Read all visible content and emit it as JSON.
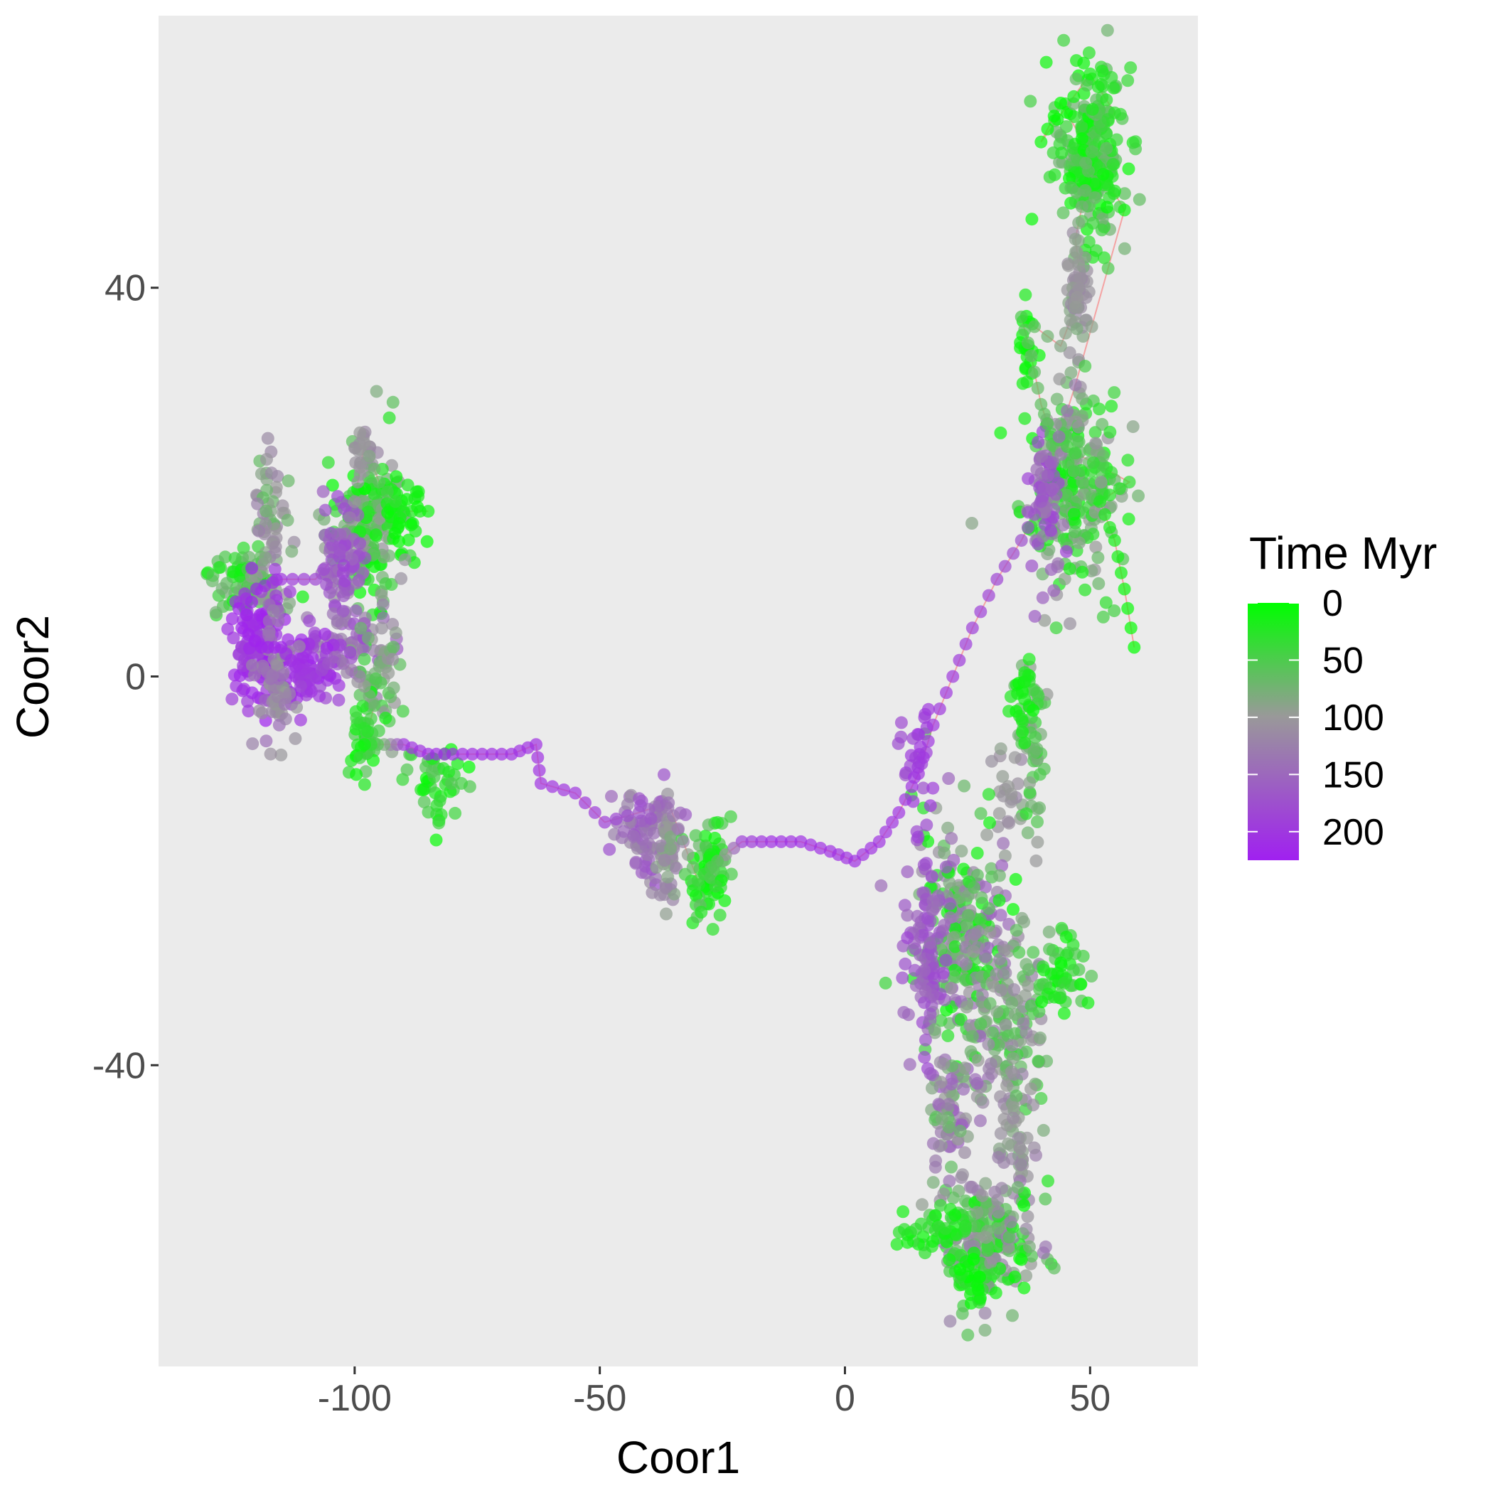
{
  "chart_data": {
    "type": "scatter",
    "title": "",
    "xlabel": "Coor1",
    "ylabel": "Coor2",
    "xlim": [
      -140,
      72
    ],
    "ylim": [
      -71,
      68
    ],
    "x_ticks": [
      -100,
      -50,
      0,
      50
    ],
    "x_tick_labels": [
      "-100",
      "-50",
      "0",
      "50"
    ],
    "y_ticks": [
      40,
      0,
      -40
    ],
    "y_tick_labels": [
      "40",
      "0",
      "-40"
    ],
    "grid": false,
    "panel_background": "#ebebeb",
    "connecting_line_color": "#f4a3a3",
    "color_scale": {
      "title": "Time Myr",
      "low_color": "#00ff00",
      "mid_color": "#999999",
      "high_color": "#a020f0",
      "range": [
        0,
        225
      ],
      "breaks": [
        0,
        50,
        100,
        150,
        200
      ],
      "break_labels": [
        "0",
        "50",
        "100",
        "150",
        "200"
      ]
    },
    "legend_position": "right",
    "point_alpha": 0.7,
    "trajectory": [
      {
        "x": 59,
        "y": 3,
        "t": 0
      },
      {
        "x": 57,
        "y": 9,
        "t": 8
      },
      {
        "x": 55,
        "y": 14,
        "t": 15
      },
      {
        "x": 52,
        "y": 18,
        "t": 22
      },
      {
        "x": 58,
        "y": 20,
        "t": 30
      },
      {
        "x": 47,
        "y": 23,
        "t": 40
      },
      {
        "x": 42,
        "y": 25,
        "t": 52
      },
      {
        "x": 40,
        "y": 28,
        "t": 62
      },
      {
        "x": 38,
        "y": 33,
        "t": 70
      },
      {
        "x": 36,
        "y": 37,
        "t": 50
      },
      {
        "x": 44,
        "y": 34,
        "t": 85
      },
      {
        "x": 47,
        "y": 38,
        "t": 95
      },
      {
        "x": 48,
        "y": 41,
        "t": 105
      },
      {
        "x": 47,
        "y": 45,
        "t": 90
      },
      {
        "x": 49,
        "y": 50,
        "t": 70
      },
      {
        "x": 51,
        "y": 56,
        "t": 50
      },
      {
        "x": 55,
        "y": 58,
        "t": 30
      },
      {
        "x": 50,
        "y": 62,
        "t": 15
      },
      {
        "x": 40,
        "y": 55,
        "t": 5
      },
      {
        "x": 44,
        "y": 59,
        "t": 0
      },
      {
        "x": 57,
        "y": 48,
        "t": 10
      },
      {
        "x": 47,
        "y": 30,
        "t": 130
      },
      {
        "x": 42,
        "y": 22,
        "t": 150
      },
      {
        "x": 40,
        "y": 18,
        "t": 165
      },
      {
        "x": 36,
        "y": 14,
        "t": 175
      },
      {
        "x": 31,
        "y": 10,
        "t": 185
      },
      {
        "x": 26,
        "y": 5,
        "t": 192
      },
      {
        "x": 22,
        "y": 0,
        "t": 198
      },
      {
        "x": 18,
        "y": -5,
        "t": 200
      },
      {
        "x": 15,
        "y": -10,
        "t": 202
      },
      {
        "x": 11,
        "y": -14,
        "t": 204
      },
      {
        "x": 7,
        "y": -17,
        "t": 205
      },
      {
        "x": 2,
        "y": -19,
        "t": 206
      },
      {
        "x": -3,
        "y": -18,
        "t": 207
      },
      {
        "x": -9,
        "y": -17,
        "t": 208
      },
      {
        "x": -15,
        "y": -17,
        "t": 209
      },
      {
        "x": -21,
        "y": -17,
        "t": 190
      },
      {
        "x": -26,
        "y": -19,
        "t": 60
      },
      {
        "x": -30,
        "y": -21,
        "t": 40
      },
      {
        "x": -33,
        "y": -17,
        "t": 120
      },
      {
        "x": -36,
        "y": -13,
        "t": 140
      },
      {
        "x": -42,
        "y": -14,
        "t": 170
      },
      {
        "x": -49,
        "y": -15,
        "t": 190
      },
      {
        "x": -55,
        "y": -12,
        "t": 200
      },
      {
        "x": -62,
        "y": -11,
        "t": 205
      },
      {
        "x": -63,
        "y": -7,
        "t": 206
      },
      {
        "x": -68,
        "y": -8,
        "t": 207
      },
      {
        "x": -74,
        "y": -8,
        "t": 208
      },
      {
        "x": -80,
        "y": -8,
        "t": 209
      },
      {
        "x": -85,
        "y": -8,
        "t": 210
      },
      {
        "x": -90,
        "y": -7,
        "t": 200
      },
      {
        "x": -94,
        "y": -7,
        "t": 80
      },
      {
        "x": -98,
        "y": -7,
        "t": 10
      },
      {
        "x": -96,
        "y": -3,
        "t": 60
      },
      {
        "x": -99,
        "y": 0,
        "t": 120
      },
      {
        "x": -104,
        "y": 2,
        "t": 150
      },
      {
        "x": -108,
        "y": 0,
        "t": 190
      },
      {
        "x": -112,
        "y": 1,
        "t": 205
      },
      {
        "x": -115,
        "y": 3,
        "t": 215
      },
      {
        "x": -119,
        "y": 3,
        "t": 220
      },
      {
        "x": -123,
        "y": 5,
        "t": 222
      },
      {
        "x": -120,
        "y": 9,
        "t": 218
      },
      {
        "x": -115,
        "y": 10,
        "t": 200
      },
      {
        "x": -108,
        "y": 10,
        "t": 185
      },
      {
        "x": -103,
        "y": 13,
        "t": 170
      },
      {
        "x": -100,
        "y": 18,
        "t": 110
      },
      {
        "x": -98,
        "y": 24,
        "t": 100
      },
      {
        "x": -95,
        "y": 20,
        "t": 60
      },
      {
        "x": -90,
        "y": 17,
        "t": 20
      },
      {
        "x": -85,
        "y": 17,
        "t": 10
      }
    ],
    "clusters": [
      {
        "cx": 50,
        "cy": 54,
        "sx": 3.5,
        "sy": 4.5,
        "n": 240,
        "t0": 0,
        "t1": 80
      },
      {
        "cx": 47,
        "cy": 38,
        "sx": 1.2,
        "sy": 4,
        "n": 50,
        "t0": 80,
        "t1": 125
      },
      {
        "cx": 37,
        "cy": 34,
        "sx": 0.8,
        "sy": 2.5,
        "n": 20,
        "t0": 0,
        "t1": 20
      },
      {
        "cx": 46,
        "cy": 20,
        "sx": 5,
        "sy": 5,
        "n": 260,
        "t0": 0,
        "t1": 110
      },
      {
        "cx": 41,
        "cy": 18,
        "sx": 2,
        "sy": 3.5,
        "n": 60,
        "t0": 130,
        "t1": 190
      },
      {
        "cx": 38,
        "cy": -7,
        "sx": 1.5,
        "sy": 5,
        "n": 60,
        "t0": 30,
        "t1": 100
      },
      {
        "cx": 33,
        "cy": -12,
        "sx": 2,
        "sy": 2,
        "n": 20,
        "t0": 90,
        "t1": 120
      },
      {
        "cx": 24,
        "cy": -27,
        "sx": 5,
        "sy": 6,
        "n": 260,
        "t0": 0,
        "t1": 160
      },
      {
        "cx": 17,
        "cy": -28,
        "sx": 2,
        "sy": 5,
        "n": 90,
        "t0": 140,
        "t1": 185
      },
      {
        "cx": 33,
        "cy": -36,
        "sx": 4.5,
        "sy": 5,
        "n": 150,
        "t0": 40,
        "t1": 130
      },
      {
        "cx": 44,
        "cy": -31,
        "sx": 2,
        "sy": 2.5,
        "n": 50,
        "t0": 0,
        "t1": 60
      },
      {
        "cx": 22,
        "cy": -44,
        "sx": 2.5,
        "sy": 4,
        "n": 70,
        "t0": 60,
        "t1": 170
      },
      {
        "cx": 35,
        "cy": -48,
        "sx": 2,
        "sy": 4,
        "n": 50,
        "t0": 80,
        "t1": 130
      },
      {
        "cx": 29,
        "cy": -58,
        "sx": 5,
        "sy": 3.5,
        "n": 220,
        "t0": 0,
        "t1": 140
      },
      {
        "cx": 18,
        "cy": -57,
        "sx": 3.5,
        "sy": 1.5,
        "n": 40,
        "t0": 0,
        "t1": 40
      },
      {
        "cx": 27,
        "cy": -63,
        "sx": 2,
        "sy": 1.5,
        "n": 25,
        "t0": 0,
        "t1": 30
      },
      {
        "cx": -97,
        "cy": 15,
        "sx": 4,
        "sy": 4,
        "n": 190,
        "t0": 0,
        "t1": 110
      },
      {
        "cx": -90,
        "cy": 17,
        "sx": 2,
        "sy": 1.5,
        "n": 30,
        "t0": 0,
        "t1": 20
      },
      {
        "cx": -103,
        "cy": 12,
        "sx": 2.5,
        "sy": 3,
        "n": 70,
        "t0": 140,
        "t1": 190
      },
      {
        "cx": -98,
        "cy": 23,
        "sx": 1.5,
        "sy": 1.5,
        "n": 20,
        "t0": 90,
        "t1": 120
      },
      {
        "cx": -100,
        "cy": 4,
        "sx": 4,
        "sy": 2,
        "n": 60,
        "t0": 110,
        "t1": 180
      },
      {
        "cx": -95,
        "cy": 0,
        "sx": 2,
        "sy": 3,
        "n": 50,
        "t0": 40,
        "t1": 110
      },
      {
        "cx": -98,
        "cy": -6,
        "sx": 1.8,
        "sy": 2.5,
        "n": 40,
        "t0": 0,
        "t1": 60
      },
      {
        "cx": -123,
        "cy": 10,
        "sx": 3,
        "sy": 2,
        "n": 70,
        "t0": 10,
        "t1": 80
      },
      {
        "cx": -117,
        "cy": 14,
        "sx": 2,
        "sy": 4,
        "n": 70,
        "t0": 60,
        "t1": 130
      },
      {
        "cx": -120,
        "cy": 3,
        "sx": 3,
        "sy": 3,
        "n": 120,
        "t0": 180,
        "t1": 225
      },
      {
        "cx": -110,
        "cy": 1,
        "sx": 3,
        "sy": 2,
        "n": 90,
        "t0": 180,
        "t1": 220
      },
      {
        "cx": -116,
        "cy": -1,
        "sx": 2,
        "sy": 3,
        "n": 60,
        "t0": 90,
        "t1": 150
      },
      {
        "cx": -83,
        "cy": -11,
        "sx": 3,
        "sy": 2,
        "n": 45,
        "t0": 0,
        "t1": 60
      },
      {
        "cx": -40,
        "cy": -16,
        "sx": 3,
        "sy": 2.5,
        "n": 80,
        "t0": 110,
        "t1": 180
      },
      {
        "cx": -36,
        "cy": -19,
        "sx": 1.2,
        "sy": 3.5,
        "n": 40,
        "t0": 80,
        "t1": 130
      },
      {
        "cx": -28,
        "cy": -20,
        "sx": 2.5,
        "sy": 2.5,
        "n": 70,
        "t0": 0,
        "t1": 70
      },
      {
        "cx": 14,
        "cy": -11,
        "sx": 2,
        "sy": 4,
        "n": 30,
        "t0": 170,
        "t1": 205
      },
      {
        "cx": 36,
        "cy": -2,
        "sx": 1.2,
        "sy": 2,
        "n": 20,
        "t0": 0,
        "t1": 30
      }
    ]
  }
}
